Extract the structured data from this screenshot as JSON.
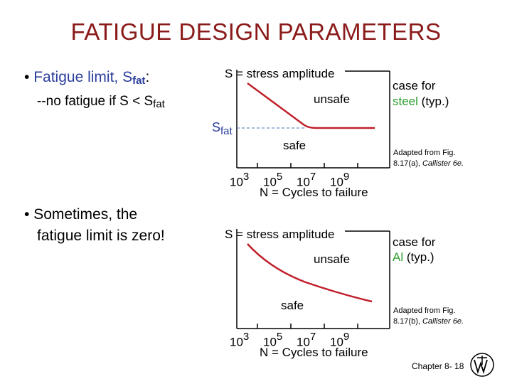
{
  "title": "FATIGUE DESIGN PARAMETERS",
  "bullet1": {
    "bullet": "•",
    "text": "Fatigue limit, S",
    "sub": "fat",
    "colon": ":",
    "line2_prefix": "--no fatigue if S < S",
    "line2_sub": "fat"
  },
  "bullet2": {
    "bullet": "•",
    "line1": "Sometimes, the",
    "line2": "fatigue limit is zero!"
  },
  "chart1": {
    "y_label": "S = stress amplitude",
    "unsafe": "unsafe",
    "safe": "safe",
    "sfat_main": "S",
    "sfat_sub": "fat",
    "case_line1": "case for",
    "case_material": "steel",
    "case_typ": "(typ.)",
    "ticks": [
      {
        "base": "10",
        "exp": "3"
      },
      {
        "base": "10",
        "exp": "5"
      },
      {
        "base": "10",
        "exp": "7"
      },
      {
        "base": "10",
        "exp": "9"
      }
    ],
    "x_label": "N = Cycles to failure",
    "adapted_line1": "Adapted from Fig.",
    "adapted_line2_prefix": "8.17(a), ",
    "adapted_line2_italic": "Callister 6e."
  },
  "chart2": {
    "y_label": "S = stress amplitude",
    "unsafe": "unsafe",
    "safe": "safe",
    "case_line1": "case for",
    "case_material": "Al",
    "case_typ": "(typ.)",
    "ticks": [
      {
        "base": "10",
        "exp": "3"
      },
      {
        "base": "10",
        "exp": "5"
      },
      {
        "base": "10",
        "exp": "7"
      },
      {
        "base": "10",
        "exp": "9"
      }
    ],
    "x_label": "N = Cycles to failure",
    "adapted_line1": "Adapted from Fig.",
    "adapted_line2_prefix": "8.17(b), ",
    "adapted_line2_italic": "Callister 6e."
  },
  "footer": {
    "chapter": "Chapter 8-",
    "page": "18"
  },
  "colors": {
    "title": "#8b1a1a",
    "accent_blue": "#2c3e9c",
    "material_green": "#2e9e2e",
    "curve_red": "#c0202a",
    "dashed_blue": "#6f8fc4"
  }
}
